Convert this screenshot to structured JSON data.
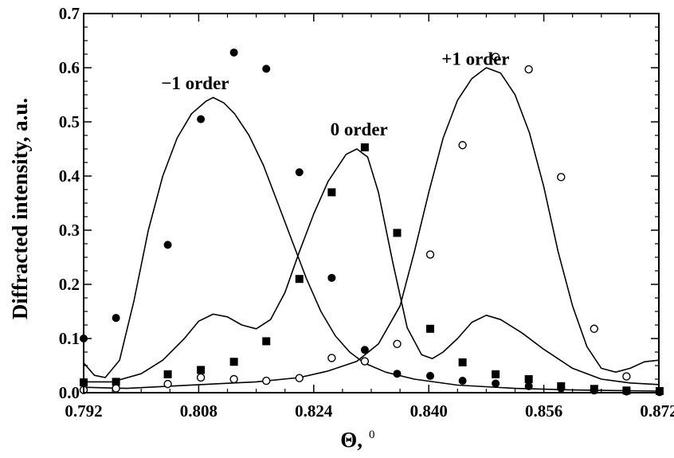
{
  "chart_data": {
    "type": "scatter",
    "xlabel": "Θ, ⁰",
    "xlabel_main": "Θ,",
    "xlabel_sup": "0",
    "ylabel": "Diffracted intensity, a.u.",
    "xlim": [
      0.792,
      0.872
    ],
    "ylim": [
      0.0,
      0.7
    ],
    "x_ticks": [
      "0.792",
      "0.808",
      "0.824",
      "0.840",
      "0.856",
      "0.872"
    ],
    "y_ticks": [
      "0.0",
      "0.1",
      "0.2",
      "0.3",
      "0.4",
      "0.5",
      "0.6",
      "0.7"
    ],
    "grid": false,
    "annotations": [
      {
        "text": "−1 order",
        "x": 0.8075,
        "y": 0.56
      },
      {
        "text": "0 order",
        "x": 0.8303,
        "y": 0.475
      },
      {
        "text": "+1 order",
        "x": 0.8465,
        "y": 0.605
      }
    ],
    "series": [
      {
        "marker": "filled-circle",
        "points": [
          [
            0.792,
            0.1
          ],
          [
            0.7965,
            0.138
          ],
          [
            0.8037,
            0.273
          ],
          [
            0.8083,
            0.505
          ],
          [
            0.8129,
            0.628
          ],
          [
            0.8174,
            0.598
          ],
          [
            0.822,
            0.407
          ],
          [
            0.8265,
            0.212
          ],
          [
            0.8311,
            0.079
          ],
          [
            0.8356,
            0.035
          ],
          [
            0.8402,
            0.031
          ],
          [
            0.8447,
            0.022
          ],
          [
            0.8493,
            0.017
          ],
          [
            0.8539,
            0.012
          ],
          [
            0.8584,
            0.008
          ],
          [
            0.863,
            0.004
          ],
          [
            0.8675,
            0.002
          ],
          [
            0.8721,
            0.001
          ]
        ]
      },
      {
        "marker": "filled-square",
        "points": [
          [
            0.792,
            0.019
          ],
          [
            0.7965,
            0.02
          ],
          [
            0.8037,
            0.034
          ],
          [
            0.8083,
            0.042
          ],
          [
            0.8129,
            0.057
          ],
          [
            0.8174,
            0.095
          ],
          [
            0.822,
            0.21
          ],
          [
            0.8265,
            0.37
          ],
          [
            0.8311,
            0.453
          ],
          [
            0.8356,
            0.295
          ],
          [
            0.8402,
            0.118
          ],
          [
            0.8447,
            0.056
          ],
          [
            0.8493,
            0.034
          ],
          [
            0.8539,
            0.025
          ],
          [
            0.8584,
            0.012
          ],
          [
            0.863,
            0.007
          ],
          [
            0.8675,
            0.004
          ],
          [
            0.8721,
            0.003
          ]
        ]
      },
      {
        "marker": "open-circle",
        "points": [
          [
            0.792,
            0.005
          ],
          [
            0.7965,
            0.008
          ],
          [
            0.8037,
            0.016
          ],
          [
            0.8083,
            0.028
          ],
          [
            0.8129,
            0.025
          ],
          [
            0.8174,
            0.022
          ],
          [
            0.822,
            0.027
          ],
          [
            0.8265,
            0.064
          ],
          [
            0.8311,
            0.058
          ],
          [
            0.8356,
            0.09
          ],
          [
            0.8402,
            0.255
          ],
          [
            0.8447,
            0.457
          ],
          [
            0.8493,
            0.62
          ],
          [
            0.8539,
            0.597
          ],
          [
            0.8584,
            0.398
          ],
          [
            0.863,
            0.118
          ],
          [
            0.8675,
            0.03
          ]
        ]
      }
    ],
    "curves": [
      {
        "label": "-1 order fit",
        "points": [
          [
            0.792,
            0.055
          ],
          [
            0.7935,
            0.032
          ],
          [
            0.795,
            0.028
          ],
          [
            0.797,
            0.06
          ],
          [
            0.799,
            0.17
          ],
          [
            0.801,
            0.3
          ],
          [
            0.803,
            0.4
          ],
          [
            0.805,
            0.47
          ],
          [
            0.807,
            0.515
          ],
          [
            0.809,
            0.538
          ],
          [
            0.81,
            0.545
          ],
          [
            0.8115,
            0.535
          ],
          [
            0.813,
            0.515
          ],
          [
            0.815,
            0.475
          ],
          [
            0.817,
            0.42
          ],
          [
            0.819,
            0.35
          ],
          [
            0.821,
            0.28
          ],
          [
            0.823,
            0.21
          ],
          [
            0.825,
            0.15
          ],
          [
            0.827,
            0.105
          ],
          [
            0.829,
            0.075
          ],
          [
            0.831,
            0.055
          ],
          [
            0.834,
            0.038
          ],
          [
            0.838,
            0.025
          ],
          [
            0.844,
            0.014
          ],
          [
            0.852,
            0.008
          ],
          [
            0.86,
            0.005
          ],
          [
            0.872,
            0.003
          ]
        ]
      },
      {
        "label": "0 order fit",
        "points": [
          [
            0.792,
            0.02
          ],
          [
            0.796,
            0.02
          ],
          [
            0.8,
            0.035
          ],
          [
            0.803,
            0.06
          ],
          [
            0.806,
            0.1
          ],
          [
            0.808,
            0.132
          ],
          [
            0.81,
            0.145
          ],
          [
            0.812,
            0.14
          ],
          [
            0.814,
            0.125
          ],
          [
            0.816,
            0.118
          ],
          [
            0.818,
            0.135
          ],
          [
            0.82,
            0.185
          ],
          [
            0.822,
            0.26
          ],
          [
            0.824,
            0.33
          ],
          [
            0.826,
            0.39
          ],
          [
            0.8285,
            0.44
          ],
          [
            0.83,
            0.45
          ],
          [
            0.8315,
            0.435
          ],
          [
            0.833,
            0.37
          ],
          [
            0.835,
            0.24
          ],
          [
            0.837,
            0.12
          ],
          [
            0.839,
            0.07
          ],
          [
            0.8405,
            0.063
          ],
          [
            0.842,
            0.075
          ],
          [
            0.844,
            0.1
          ],
          [
            0.846,
            0.13
          ],
          [
            0.848,
            0.143
          ],
          [
            0.85,
            0.135
          ],
          [
            0.853,
            0.11
          ],
          [
            0.856,
            0.08
          ],
          [
            0.86,
            0.045
          ],
          [
            0.864,
            0.025
          ],
          [
            0.868,
            0.018
          ],
          [
            0.872,
            0.015
          ]
        ]
      },
      {
        "label": "+1 order fit",
        "points": [
          [
            0.792,
            0.01
          ],
          [
            0.798,
            0.008
          ],
          [
            0.804,
            0.012
          ],
          [
            0.81,
            0.016
          ],
          [
            0.816,
            0.02
          ],
          [
            0.822,
            0.028
          ],
          [
            0.826,
            0.04
          ],
          [
            0.83,
            0.058
          ],
          [
            0.833,
            0.09
          ],
          [
            0.836,
            0.16
          ],
          [
            0.838,
            0.26
          ],
          [
            0.84,
            0.37
          ],
          [
            0.842,
            0.47
          ],
          [
            0.844,
            0.54
          ],
          [
            0.846,
            0.58
          ],
          [
            0.848,
            0.6
          ],
          [
            0.85,
            0.59
          ],
          [
            0.852,
            0.55
          ],
          [
            0.854,
            0.48
          ],
          [
            0.856,
            0.38
          ],
          [
            0.858,
            0.26
          ],
          [
            0.86,
            0.16
          ],
          [
            0.862,
            0.085
          ],
          [
            0.864,
            0.045
          ],
          [
            0.866,
            0.038
          ],
          [
            0.868,
            0.045
          ],
          [
            0.87,
            0.057
          ],
          [
            0.872,
            0.06
          ]
        ]
      }
    ]
  }
}
